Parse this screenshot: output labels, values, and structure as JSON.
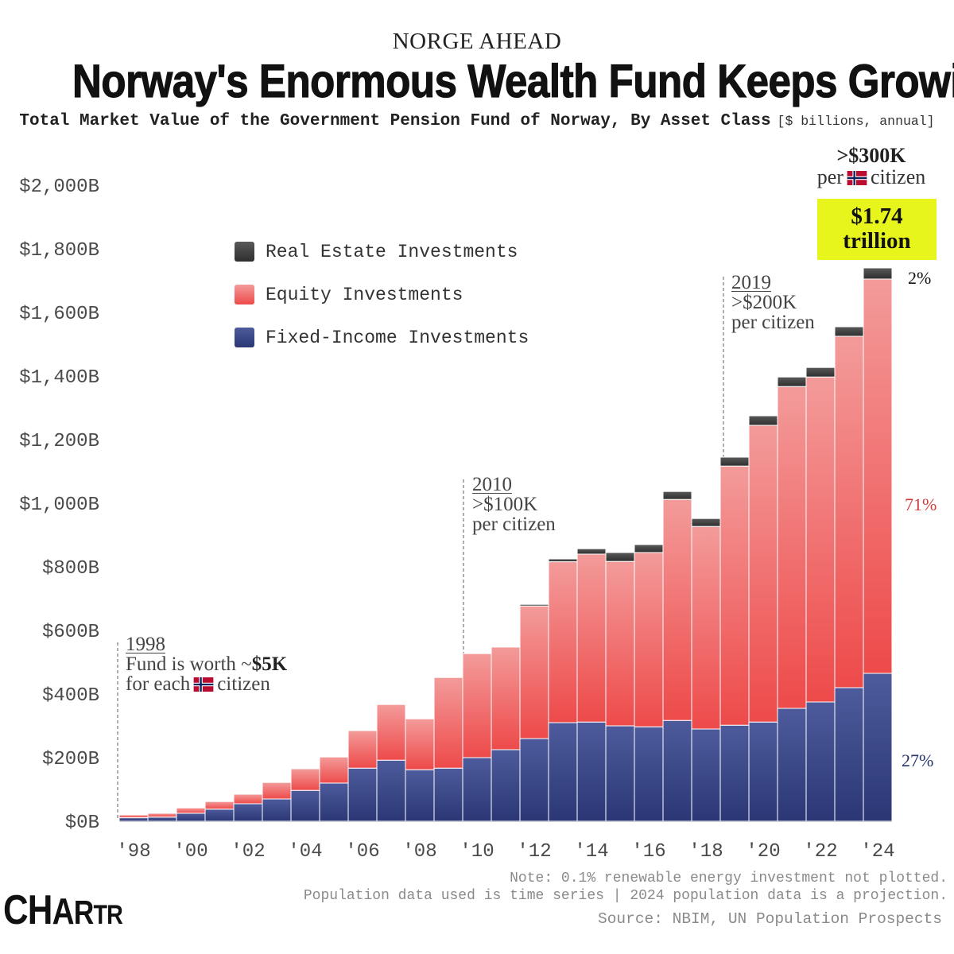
{
  "chart_data": {
    "type": "bar",
    "stacked": true,
    "kicker": "NORGE AHEAD",
    "title": "Norway's Enormous Wealth Fund Keeps Growing",
    "subtitle": "Total Market Value of the Government Pension Fund of Norway, By Asset Class",
    "unit_note": "[$ billions, annual]",
    "x": [
      1998,
      1999,
      2000,
      2001,
      2002,
      2003,
      2004,
      2005,
      2006,
      2007,
      2008,
      2009,
      2010,
      2011,
      2012,
      2013,
      2014,
      2015,
      2016,
      2017,
      2018,
      2019,
      2020,
      2021,
      2022,
      2023,
      2024
    ],
    "x_ticks": [
      1998,
      2000,
      2002,
      2004,
      2006,
      2008,
      2010,
      2012,
      2014,
      2016,
      2018,
      2020,
      2022,
      2024
    ],
    "x_tick_labels": [
      "'98",
      "'00",
      "'02",
      "'04",
      "'06",
      "'08",
      "'10",
      "'12",
      "'14",
      "'16",
      "'18",
      "'20",
      "'22",
      "'24"
    ],
    "ylim": [
      0,
      2000
    ],
    "y_ticks": [
      0,
      200,
      400,
      600,
      800,
      1000,
      1200,
      1400,
      1600,
      1800,
      2000
    ],
    "y_tick_labels": [
      "$0B",
      "$200B",
      "$400B",
      "$600B",
      "$800B",
      "$1,000B",
      "$1,200B",
      "$1,400B",
      "$1,600B",
      "$1,800B",
      "$2,000B"
    ],
    "grid": false,
    "legend_position": "top-left",
    "series": [
      {
        "name": "Fixed-Income Investments",
        "color_top": "#4d5b9c",
        "color_bottom": "#2b3775",
        "values": [
          11,
          13,
          25,
          38,
          55,
          70,
          97,
          120,
          167,
          192,
          162,
          167,
          200,
          225,
          260,
          310,
          312,
          300,
          297,
          317,
          290,
          302,
          312,
          355,
          375,
          420,
          465
        ]
      },
      {
        "name": "Equity Investments",
        "color_top": "#f39b9a",
        "color_bottom": "#ee4a4a",
        "values": [
          9,
          12,
          17,
          24,
          30,
          52,
          68,
          82,
          118,
          175,
          160,
          285,
          327,
          323,
          417,
          506,
          528,
          517,
          548,
          695,
          637,
          815,
          933,
          1012,
          1022,
          1105,
          1240
        ]
      },
      {
        "name": "Real Estate Investments",
        "color_top": "#5a5a5a",
        "color_bottom": "#2e2e2e",
        "values": [
          0,
          0,
          0,
          0,
          0,
          0,
          0,
          0,
          0,
          0,
          0,
          0,
          0,
          2,
          5,
          9,
          17,
          28,
          25,
          25,
          25,
          28,
          30,
          30,
          30,
          30,
          35
        ]
      }
    ],
    "end_labels": [
      {
        "text": "2%",
        "color": "#111111"
      },
      {
        "text": "71%",
        "color": "#d23b3b"
      },
      {
        "text": "27%",
        "color": "#25316b"
      }
    ],
    "annotations": [
      {
        "year": "1998",
        "line1": "Fund is worth ~",
        "line1_bold": "$5K",
        "line2_before_flag": "for each",
        "line2_after_flag": "citizen"
      },
      {
        "year": "2010",
        "line1": ">$100K",
        "line2": "per citizen"
      },
      {
        "year": "2019",
        "line1": ">$200K",
        "line2": "per citizen"
      }
    ],
    "latest_callout": {
      "value": ">$300K",
      "line2_before_flag": "per",
      "line2_after_flag": "citizen",
      "total": "$1.74",
      "total_unit": "trillion"
    }
  },
  "colors": {
    "highlight": "#e8f51c"
  },
  "icons": {
    "flag": "norway-flag-icon"
  },
  "footer": {
    "note": "Note: 0.1% renewable energy investment not plotted.",
    "population_note": "Population data used is time series | 2024 population data is a projection.",
    "source": "Source: NBIM, UN Population Prospects"
  },
  "logo": "CHARTR"
}
